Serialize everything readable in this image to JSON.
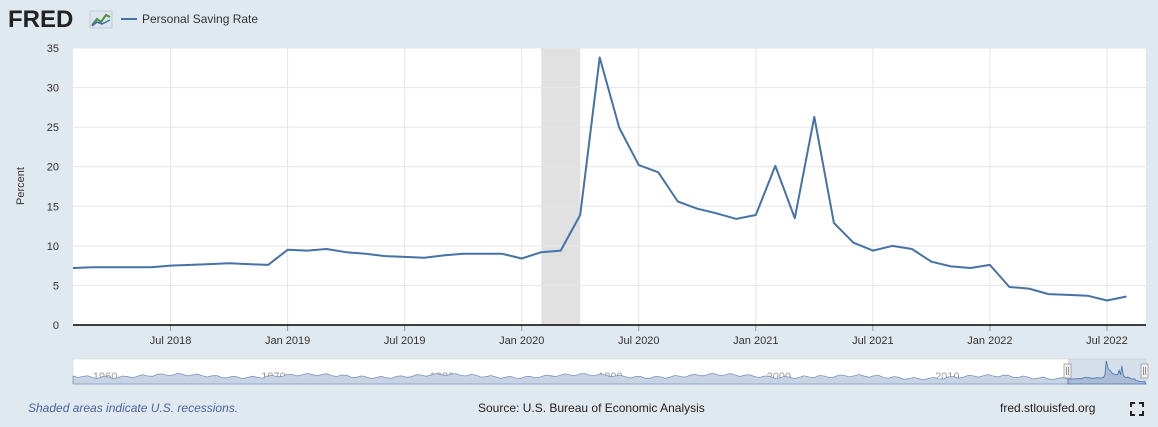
{
  "header": {
    "logo_text": "FRED",
    "legend_label": "Personal Saving Rate"
  },
  "footer": {
    "recession_note": "Shaded areas indicate U.S. recessions.",
    "source": "Source: U.S. Bureau of Economic Analysis",
    "site": "fred.stlouisfed.org"
  },
  "icons": {
    "fullscreen": "fullscreen-icon",
    "logo_chart": "chart-line-icon"
  },
  "colors": {
    "series": "#4572a7",
    "background": "#e1e9f0",
    "plot": "#ffffff",
    "recession": "#e1e1e1",
    "grid": "#e6e6e6",
    "navigator_fill": "#c8d4e4",
    "navigator_mask": "#b3c4dd"
  },
  "chart_data": {
    "type": "line",
    "title": "",
    "xlabel": "",
    "ylabel": "Percent",
    "ylim": [
      0,
      35
    ],
    "yticks": [
      0,
      5,
      10,
      15,
      20,
      25,
      30,
      35
    ],
    "grid": true,
    "legend": "top-left",
    "x_start": "2018-02",
    "x_end": "2022-09",
    "xticks": [
      {
        "date": "2018-07",
        "label": "Jul 2018"
      },
      {
        "date": "2019-01",
        "label": "Jan 2019"
      },
      {
        "date": "2019-07",
        "label": "Jul 2019"
      },
      {
        "date": "2020-01",
        "label": "Jan 2020"
      },
      {
        "date": "2020-07",
        "label": "Jul 2020"
      },
      {
        "date": "2021-01",
        "label": "Jan 2021"
      },
      {
        "date": "2021-07",
        "label": "Jul 2021"
      },
      {
        "date": "2022-01",
        "label": "Jan 2022"
      },
      {
        "date": "2022-07",
        "label": "Jul 2022"
      }
    ],
    "recessions": [
      {
        "start": "2020-02",
        "end": "2020-04"
      }
    ],
    "series": [
      {
        "name": "Personal Saving Rate",
        "x": [
          "2018-02",
          "2018-03",
          "2018-04",
          "2018-05",
          "2018-06",
          "2018-07",
          "2018-08",
          "2018-09",
          "2018-10",
          "2018-11",
          "2018-12",
          "2019-01",
          "2019-02",
          "2019-03",
          "2019-04",
          "2019-05",
          "2019-06",
          "2019-07",
          "2019-08",
          "2019-09",
          "2019-10",
          "2019-11",
          "2019-12",
          "2020-01",
          "2020-02",
          "2020-03",
          "2020-04",
          "2020-05",
          "2020-06",
          "2020-07",
          "2020-08",
          "2020-09",
          "2020-10",
          "2020-11",
          "2020-12",
          "2021-01",
          "2021-02",
          "2021-03",
          "2021-04",
          "2021-05",
          "2021-06",
          "2021-07",
          "2021-08",
          "2021-09",
          "2021-10",
          "2021-11",
          "2021-12",
          "2022-01",
          "2022-02",
          "2022-03",
          "2022-04",
          "2022-05",
          "2022-06",
          "2022-07",
          "2022-08"
        ],
        "values": [
          7.2,
          7.3,
          7.3,
          7.3,
          7.3,
          7.5,
          7.6,
          7.7,
          7.8,
          7.7,
          7.6,
          9.5,
          9.4,
          9.6,
          9.2,
          9.0,
          8.7,
          8.6,
          8.5,
          8.8,
          9.0,
          9.0,
          9.0,
          8.4,
          9.2,
          9.4,
          13.9,
          33.8,
          24.9,
          20.2,
          19.3,
          15.6,
          14.7,
          14.1,
          13.4,
          13.9,
          20.1,
          13.5,
          26.3,
          12.9,
          10.4,
          9.4,
          10.0,
          9.6,
          8.0,
          7.4,
          7.2,
          7.6,
          4.8,
          4.6,
          3.9,
          3.8,
          3.7,
          3.1,
          3.6
        ]
      }
    ],
    "navigator_labels": [
      "1960",
      "1970",
      "1980",
      "1990",
      "2000",
      "2010"
    ]
  }
}
